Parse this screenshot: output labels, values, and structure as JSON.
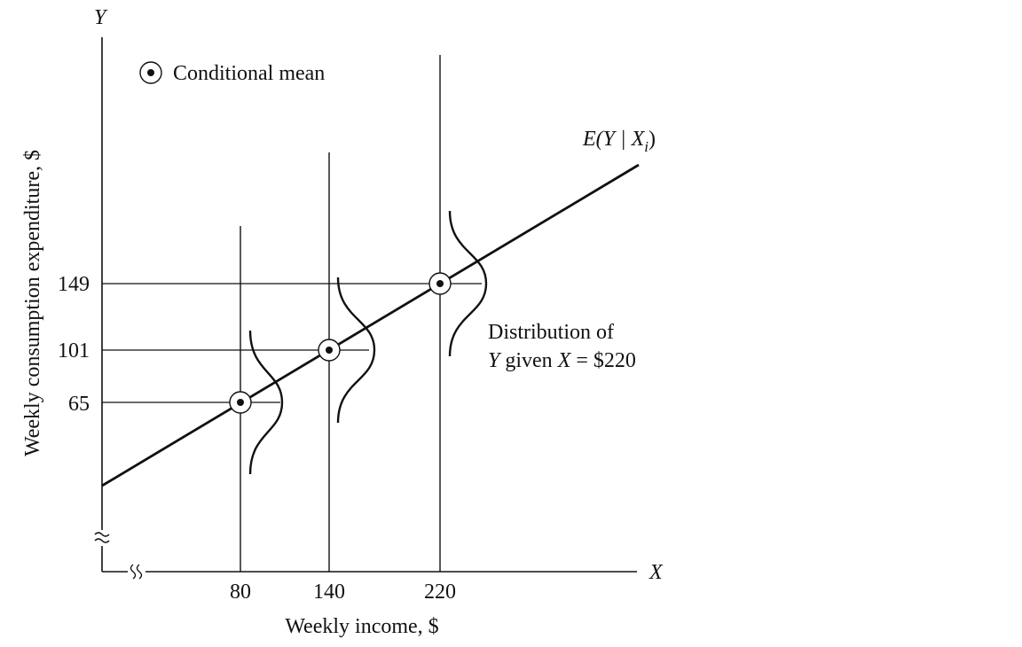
{
  "chart_data": {
    "type": "line",
    "axis_y_letter": "Y",
    "axis_x_letter": "X",
    "ylabel": "Weekly consumption expenditure, $",
    "xlabel": "Weekly income, $",
    "x_ticks": [
      "80",
      "140",
      "220"
    ],
    "y_ticks": [
      "65",
      "101",
      "149"
    ],
    "regression_label": "E(Y | X",
    "regression_subscript": "i",
    "legend": {
      "label": "Conditional mean",
      "placement": "top-left"
    },
    "annotation_line1": "Distribution of",
    "annotation_line2_y": "Y",
    "annotation_line2_given": " given ",
    "annotation_line2_x": "X",
    "annotation_line2_value": " = $220",
    "conditional_means": [
      {
        "x": 80,
        "y": 65
      },
      {
        "x": 140,
        "y": 101
      },
      {
        "x": 220,
        "y": 149
      }
    ],
    "axis_breaks": true
  }
}
